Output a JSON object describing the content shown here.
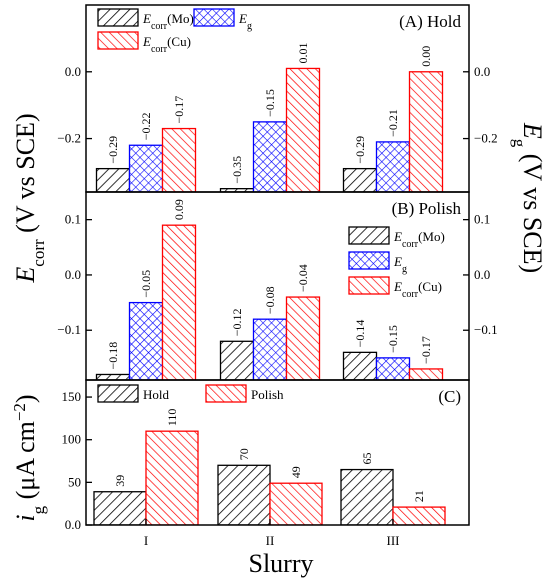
{
  "chart_data": [
    {
      "id": "A",
      "type": "bar",
      "title": "(A) Hold",
      "categories": [
        "I",
        "II",
        "III"
      ],
      "ylim": [
        -0.36,
        0.2
      ],
      "yticks": [
        -0.2,
        0.0
      ],
      "legend_position": "top-left",
      "series": [
        {
          "name": "E_corr(Mo)",
          "values": [
            -0.29,
            -0.35,
            -0.29
          ]
        },
        {
          "name": "E_g",
          "values": [
            -0.22,
            -0.15,
            -0.21
          ]
        },
        {
          "name": "E_corr(Cu)",
          "values": [
            -0.17,
            0.01,
            0.0
          ]
        }
      ],
      "labels": [
        [
          "−0.29",
          "−0.22",
          "−0.17"
        ],
        [
          "−0.35",
          "−0.15",
          "0.01"
        ],
        [
          "−0.29",
          "−0.21",
          "0.00"
        ]
      ]
    },
    {
      "id": "B",
      "type": "bar",
      "title": "(B) Polish",
      "categories": [
        "I",
        "II",
        "III"
      ],
      "ylim": [
        -0.19,
        0.15
      ],
      "yticks": [
        -0.1,
        0.0,
        0.1
      ],
      "legend_position": "right",
      "series": [
        {
          "name": "E_corr(Mo)",
          "values": [
            -0.18,
            -0.12,
            -0.14
          ]
        },
        {
          "name": "E_g",
          "values": [
            -0.05,
            -0.08,
            -0.15
          ]
        },
        {
          "name": "E_corr(Cu)",
          "values": [
            0.09,
            -0.04,
            -0.17
          ]
        }
      ],
      "labels": [
        [
          "−0.18",
          "−0.05",
          "0.09"
        ],
        [
          "−0.12",
          "−0.08",
          "−0.04"
        ],
        [
          "−0.14",
          "−0.15",
          "−0.17"
        ]
      ]
    },
    {
      "id": "C",
      "type": "bar",
      "title": "(C)",
      "categories": [
        "I",
        "II",
        "III"
      ],
      "ylim": [
        0,
        170
      ],
      "yticks": [
        0,
        50,
        100,
        150
      ],
      "legend_position": "top-left",
      "series": [
        {
          "name": "Hold",
          "values": [
            39,
            70,
            65
          ]
        },
        {
          "name": "Polish",
          "values": [
            110,
            49,
            21
          ]
        }
      ],
      "labels": [
        [
          "39",
          "110"
        ],
        [
          "70",
          "49"
        ],
        [
          "65",
          "21"
        ]
      ]
    }
  ],
  "axes": {
    "x_title": "Slurry",
    "y_left_top": {
      "sym": "E",
      "sub": "corr",
      "unit": " (V vs SCE)"
    },
    "y_right_top": {
      "sym": "E",
      "sub": "g",
      "unit": " (V vs SCE)"
    },
    "y_left_bottom": {
      "sym": "i",
      "sub": "g",
      "unit": " (μA cm",
      "sup": "−2",
      "close": ")"
    }
  },
  "legend_text": {
    "mo": {
      "sym": "E",
      "sub": "corr",
      "rest": "(Mo)"
    },
    "g": {
      "sym": "E",
      "sub": "g",
      "rest": ""
    },
    "cu": {
      "sym": "E",
      "sub": "corr",
      "rest": "(Cu)"
    },
    "hold": "Hold",
    "polish": "Polish"
  },
  "colors": {
    "mo": "#000000",
    "g": "#0000ff",
    "cu": "#ff0000"
  }
}
